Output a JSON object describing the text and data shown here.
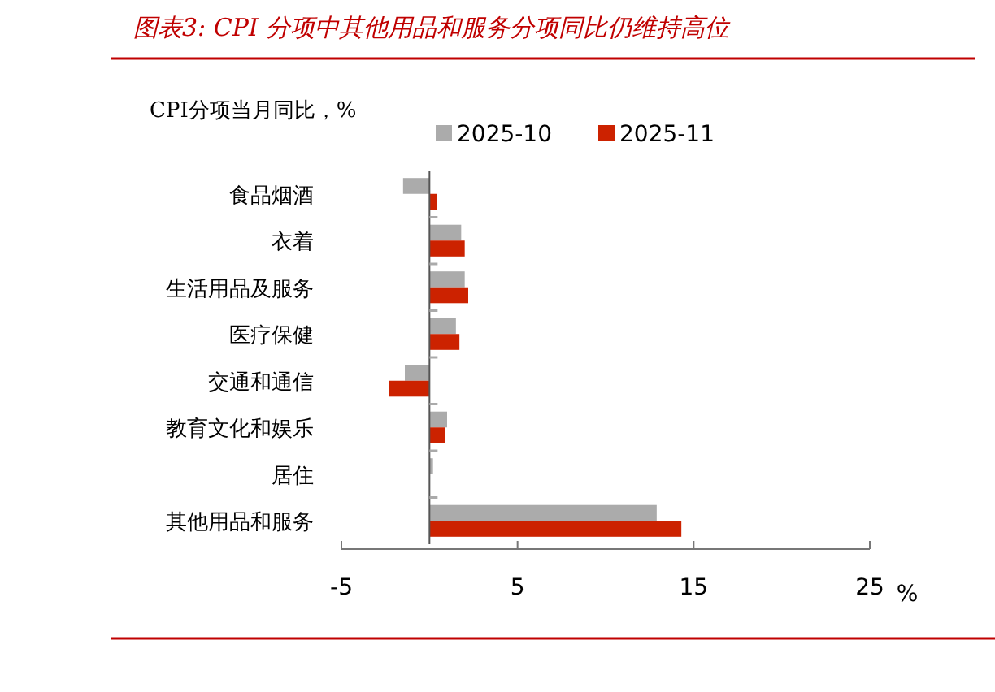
{
  "chart_data": {
    "type": "bar",
    "orientation": "horizontal",
    "title": "图表3:  CPI 分项中其他用品和服务分项同比仍维持高位",
    "subtitle": "CPI分项当月同比，%",
    "xlabel": "%",
    "categories": [
      "食品烟酒",
      "衣着",
      "生活用品及服务",
      "医疗保健",
      "交通和通信",
      "教育文化和娱乐",
      "居住",
      "其他用品和服务"
    ],
    "series": [
      {
        "name": "2025-10",
        "color": "#ababab",
        "values": [
          -1.5,
          1.8,
          2.0,
          1.5,
          -1.4,
          1.0,
          0.2,
          12.9
        ]
      },
      {
        "name": "2025-11",
        "color": "#cc2200",
        "values": [
          0.4,
          2.0,
          2.2,
          1.7,
          -2.3,
          0.9,
          0.0,
          14.3
        ]
      }
    ],
    "xlim": [
      -5,
      25
    ],
    "xticks": [
      -5,
      5,
      15,
      25
    ],
    "legend": "top"
  }
}
